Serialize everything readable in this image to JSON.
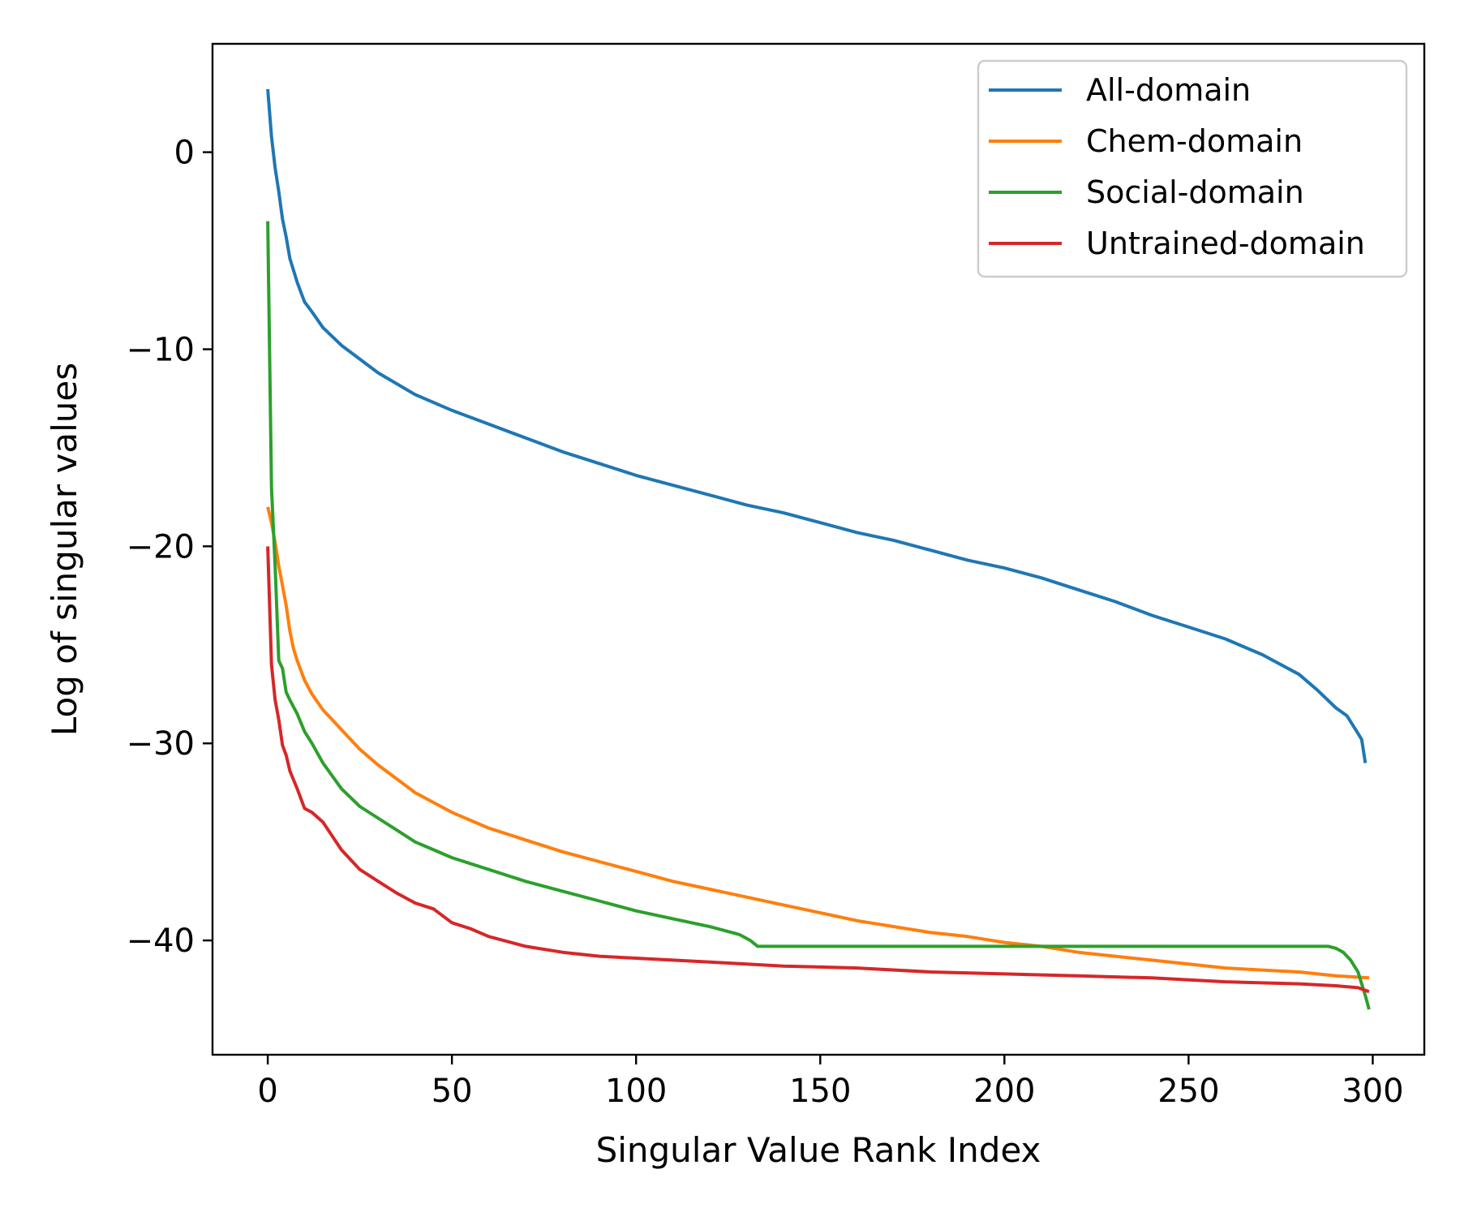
{
  "chart_data": {
    "type": "line",
    "title": "",
    "xlabel": "Singular Value Rank Index",
    "ylabel": "Log of singular values",
    "xlim": [
      -15,
      314
    ],
    "ylim": [
      -45.8,
      5.5
    ],
    "xticks": [
      0,
      50,
      100,
      150,
      200,
      250,
      300
    ],
    "yticks": [
      0,
      -10,
      -20,
      -30,
      -40
    ],
    "xtick_labels": [
      "0",
      "50",
      "100",
      "150",
      "200",
      "250",
      "300"
    ],
    "ytick_labels": [
      "0",
      "−10",
      "−20",
      "−30",
      "−40"
    ],
    "grid": false,
    "legend_position": "top-right",
    "series": [
      {
        "name": "All-domain",
        "color": "#1f77b4",
        "points": [
          [
            0,
            3.2
          ],
          [
            1,
            0.8
          ],
          [
            2,
            -0.8
          ],
          [
            3,
            -2.0
          ],
          [
            4,
            -3.4
          ],
          [
            5,
            -4.3
          ],
          [
            6,
            -5.4
          ],
          [
            8,
            -6.6
          ],
          [
            10,
            -7.6
          ],
          [
            12,
            -8.1
          ],
          [
            15,
            -8.9
          ],
          [
            20,
            -9.8
          ],
          [
            25,
            -10.5
          ],
          [
            30,
            -11.2
          ],
          [
            40,
            -12.3
          ],
          [
            50,
            -13.1
          ],
          [
            60,
            -13.8
          ],
          [
            70,
            -14.5
          ],
          [
            80,
            -15.2
          ],
          [
            90,
            -15.8
          ],
          [
            100,
            -16.4
          ],
          [
            110,
            -16.9
          ],
          [
            120,
            -17.4
          ],
          [
            130,
            -17.9
          ],
          [
            140,
            -18.3
          ],
          [
            150,
            -18.8
          ],
          [
            160,
            -19.3
          ],
          [
            170,
            -19.7
          ],
          [
            180,
            -20.2
          ],
          [
            190,
            -20.7
          ],
          [
            200,
            -21.1
          ],
          [
            210,
            -21.6
          ],
          [
            220,
            -22.2
          ],
          [
            230,
            -22.8
          ],
          [
            240,
            -23.5
          ],
          [
            250,
            -24.1
          ],
          [
            260,
            -24.7
          ],
          [
            270,
            -25.5
          ],
          [
            280,
            -26.5
          ],
          [
            285,
            -27.3
          ],
          [
            290,
            -28.2
          ],
          [
            293,
            -28.6
          ],
          [
            296,
            -29.5
          ],
          [
            297,
            -29.8
          ],
          [
            298,
            -31.0
          ]
        ]
      },
      {
        "name": "Chem-domain",
        "color": "#ff7f0e",
        "points": [
          [
            0,
            -18.0
          ],
          [
            1,
            -18.8
          ],
          [
            2,
            -19.8
          ],
          [
            3,
            -21.0
          ],
          [
            4,
            -22.0
          ],
          [
            5,
            -23.0
          ],
          [
            6,
            -24.3
          ],
          [
            7,
            -25.2
          ],
          [
            8,
            -25.8
          ],
          [
            10,
            -26.8
          ],
          [
            12,
            -27.5
          ],
          [
            15,
            -28.3
          ],
          [
            20,
            -29.3
          ],
          [
            25,
            -30.3
          ],
          [
            30,
            -31.1
          ],
          [
            35,
            -31.8
          ],
          [
            40,
            -32.5
          ],
          [
            45,
            -33.0
          ],
          [
            50,
            -33.5
          ],
          [
            60,
            -34.3
          ],
          [
            70,
            -34.9
          ],
          [
            80,
            -35.5
          ],
          [
            90,
            -36.0
          ],
          [
            100,
            -36.5
          ],
          [
            110,
            -37.0
          ],
          [
            120,
            -37.4
          ],
          [
            130,
            -37.8
          ],
          [
            140,
            -38.2
          ],
          [
            150,
            -38.6
          ],
          [
            160,
            -39.0
          ],
          [
            170,
            -39.3
          ],
          [
            180,
            -39.6
          ],
          [
            190,
            -39.8
          ],
          [
            200,
            -40.1
          ],
          [
            210,
            -40.3
          ],
          [
            220,
            -40.6
          ],
          [
            230,
            -40.8
          ],
          [
            240,
            -41.0
          ],
          [
            250,
            -41.2
          ],
          [
            260,
            -41.4
          ],
          [
            270,
            -41.5
          ],
          [
            280,
            -41.6
          ],
          [
            290,
            -41.8
          ],
          [
            299,
            -41.9
          ]
        ]
      },
      {
        "name": "Social-domain",
        "color": "#2ca02c",
        "points": [
          [
            0,
            -3.5
          ],
          [
            1,
            -17.0
          ],
          [
            2,
            -21.0
          ],
          [
            3,
            -25.8
          ],
          [
            4,
            -26.2
          ],
          [
            5,
            -27.4
          ],
          [
            6,
            -27.8
          ],
          [
            8,
            -28.5
          ],
          [
            10,
            -29.4
          ],
          [
            12,
            -30.0
          ],
          [
            15,
            -31.0
          ],
          [
            20,
            -32.3
          ],
          [
            25,
            -33.2
          ],
          [
            30,
            -33.8
          ],
          [
            35,
            -34.4
          ],
          [
            40,
            -35.0
          ],
          [
            45,
            -35.4
          ],
          [
            50,
            -35.8
          ],
          [
            60,
            -36.4
          ],
          [
            70,
            -37.0
          ],
          [
            80,
            -37.5
          ],
          [
            90,
            -38.0
          ],
          [
            100,
            -38.5
          ],
          [
            110,
            -38.9
          ],
          [
            120,
            -39.3
          ],
          [
            128,
            -39.7
          ],
          [
            131,
            -40.0
          ],
          [
            133,
            -40.3
          ],
          [
            140,
            -40.3
          ],
          [
            200,
            -40.3
          ],
          [
            250,
            -40.3
          ],
          [
            288,
            -40.3
          ],
          [
            290,
            -40.4
          ],
          [
            292,
            -40.6
          ],
          [
            294,
            -41.0
          ],
          [
            296,
            -41.6
          ],
          [
            297,
            -42.2
          ],
          [
            298,
            -42.8
          ],
          [
            299,
            -43.5
          ]
        ]
      },
      {
        "name": "Untrained-domain",
        "color": "#d62728",
        "points": [
          [
            0,
            -20.0
          ],
          [
            1,
            -26.0
          ],
          [
            2,
            -27.8
          ],
          [
            3,
            -28.8
          ],
          [
            4,
            -30.1
          ],
          [
            5,
            -30.6
          ],
          [
            6,
            -31.4
          ],
          [
            8,
            -32.3
          ],
          [
            10,
            -33.3
          ],
          [
            12,
            -33.5
          ],
          [
            15,
            -34.0
          ],
          [
            20,
            -35.4
          ],
          [
            25,
            -36.4
          ],
          [
            30,
            -37.0
          ],
          [
            35,
            -37.6
          ],
          [
            40,
            -38.1
          ],
          [
            45,
            -38.4
          ],
          [
            50,
            -39.1
          ],
          [
            55,
            -39.4
          ],
          [
            60,
            -39.8
          ],
          [
            70,
            -40.3
          ],
          [
            80,
            -40.6
          ],
          [
            90,
            -40.8
          ],
          [
            100,
            -40.9
          ],
          [
            120,
            -41.1
          ],
          [
            140,
            -41.3
          ],
          [
            160,
            -41.4
          ],
          [
            180,
            -41.6
          ],
          [
            200,
            -41.7
          ],
          [
            220,
            -41.8
          ],
          [
            240,
            -41.9
          ],
          [
            260,
            -42.1
          ],
          [
            280,
            -42.2
          ],
          [
            290,
            -42.3
          ],
          [
            296,
            -42.4
          ],
          [
            299,
            -42.6
          ]
        ]
      }
    ]
  }
}
